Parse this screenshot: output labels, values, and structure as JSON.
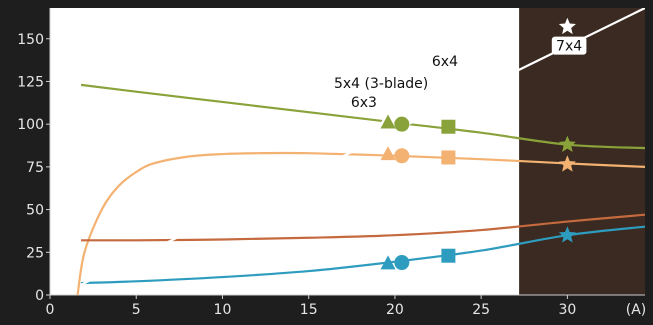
{
  "chart_data": {
    "type": "line",
    "title": "",
    "xlabel": "",
    "ylabel": "",
    "x_unit": "(A)",
    "xlim": [
      0,
      34.5
    ],
    "ylim": [
      0,
      168
    ],
    "x_ticks": [
      0,
      5,
      10,
      15,
      20,
      25,
      30
    ],
    "y_ticks": [
      0,
      25,
      50,
      75,
      100,
      125,
      150
    ],
    "grid": false,
    "legend": "none",
    "background": "#1e1e1e",
    "plot_background": "#ffffff",
    "shaded_region": {
      "x_start": 27.2,
      "x_end": 34.5,
      "color": "#3a2a21"
    },
    "series": [
      {
        "color": "#8aa23a",
        "x": [
          1.8,
          5,
          10,
          15,
          20,
          25,
          30,
          34.5
        ],
        "y": [
          123,
          119,
          113,
          107,
          101,
          95,
          88,
          86
        ]
      },
      {
        "color": "#f3b271",
        "x": [
          1.6,
          2,
          3,
          4,
          5,
          6,
          8,
          10,
          12,
          15,
          20,
          25,
          30,
          34.5
        ],
        "y": [
          0,
          25,
          50,
          64,
          72,
          77,
          81,
          82.5,
          83,
          83,
          81.5,
          79.5,
          77,
          75
        ]
      },
      {
        "color": "#c56a3e",
        "x": [
          1.8,
          5,
          10,
          15,
          20,
          25,
          30,
          34.5
        ],
        "y": [
          32,
          32,
          32.5,
          33.5,
          35,
          38,
          43,
          47
        ]
      },
      {
        "color": "#2e9cbe",
        "x": [
          1.8,
          5,
          10,
          15,
          20,
          25,
          30,
          34.5
        ],
        "y": [
          7,
          8,
          10.5,
          14,
          19.5,
          26,
          35,
          40
        ]
      },
      {
        "color": "#ffffff",
        "x": [
          1.8,
          34.5
        ],
        "y": [
          6,
          168
        ]
      }
    ],
    "marker_groups": [
      {
        "x": 19.6,
        "shape": "triangle",
        "points": [
          {
            "y": 104,
            "color": "#ffffff"
          },
          {
            "y": 101,
            "color": "#8aa23a"
          },
          {
            "y": 82.5,
            "color": "#f3b271"
          },
          {
            "y": 18.5,
            "color": "#2e9cbe"
          }
        ]
      },
      {
        "x": 20.4,
        "shape": "circle",
        "points": [
          {
            "y": 108,
            "color": "#ffffff"
          },
          {
            "y": 100,
            "color": "#8aa23a"
          },
          {
            "y": 81.5,
            "color": "#f3b271"
          },
          {
            "y": 19,
            "color": "#2e9cbe"
          }
        ]
      },
      {
        "x": 23.1,
        "shape": "square",
        "points": [
          {
            "y": 123,
            "color": "#ffffff"
          },
          {
            "y": 98.5,
            "color": "#8aa23a"
          },
          {
            "y": 80.5,
            "color": "#f3b271"
          },
          {
            "y": 23,
            "color": "#2e9cbe"
          }
        ]
      },
      {
        "x": 30.0,
        "shape": "star",
        "points": [
          {
            "y": 157,
            "color": "#ffffff"
          },
          {
            "y": 88,
            "color": "#8aa23a"
          },
          {
            "y": 76.5,
            "color": "#f3b271"
          },
          {
            "y": 35,
            "color": "#2e9cbe"
          }
        ]
      }
    ],
    "annotations": [
      {
        "text": "6x3",
        "x": 18.2,
        "y": 113
      },
      {
        "text": "5x4 (3-blade)",
        "x": 19.2,
        "y": 124
      },
      {
        "text": "6x4",
        "x": 22.9,
        "y": 137
      },
      {
        "text": "7x4",
        "x": 30.1,
        "y": 146
      }
    ]
  }
}
